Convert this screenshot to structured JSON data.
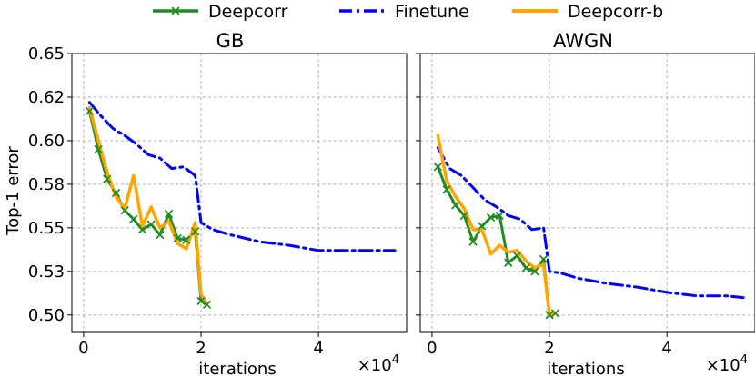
{
  "chart_data": {
    "type": "line",
    "legend": {
      "placement": "top-center",
      "entries": [
        {
          "name": "Deepcorr",
          "color": "#228b22",
          "style": "solid-x"
        },
        {
          "name": "Finetune",
          "color": "#0000ff",
          "style": "dashdot"
        },
        {
          "name": "Deepcorr-b",
          "color": "#ffa500",
          "style": "solid"
        }
      ]
    },
    "ylabel": "Top-1 error",
    "xlabel": "iterations",
    "x_multiplier": "×10",
    "x_multiplier_exp": "4",
    "xlim": [
      -0.2,
      5.5
    ],
    "ylim": [
      0.49,
      0.65
    ],
    "xticks": [
      0,
      2,
      4
    ],
    "xtick_labels": [
      "0",
      "2",
      "4"
    ],
    "yticks": [
      0.5,
      0.525,
      0.55,
      0.575,
      0.6,
      0.625,
      0.65
    ],
    "ytick_labels": [
      "0.50",
      "0.53",
      "0.55",
      "0.58",
      "0.60",
      "0.62",
      "0.65"
    ],
    "panels": [
      {
        "title": "GB",
        "series": [
          {
            "name": "Finetune",
            "x": [
              0.1,
              0.3,
              0.5,
              0.7,
              0.9,
              1.1,
              1.3,
              1.5,
              1.7,
              1.9,
              2.0,
              2.2,
              2.5,
              3.0,
              3.5,
              4.0,
              4.5,
              5.0,
              5.3
            ],
            "y": [
              0.622,
              0.614,
              0.607,
              0.603,
              0.598,
              0.592,
              0.59,
              0.584,
              0.585,
              0.58,
              0.553,
              0.549,
              0.546,
              0.542,
              0.54,
              0.537,
              0.537,
              0.537,
              0.537
            ]
          },
          {
            "name": "Deepcorr",
            "x": [
              0.1,
              0.25,
              0.4,
              0.55,
              0.7,
              0.85,
              1.0,
              1.15,
              1.3,
              1.45,
              1.6,
              1.75,
              1.9,
              2.0,
              2.1
            ],
            "y": [
              0.617,
              0.595,
              0.578,
              0.57,
              0.56,
              0.555,
              0.549,
              0.552,
              0.546,
              0.558,
              0.544,
              0.543,
              0.548,
              0.508,
              0.506
            ]
          },
          {
            "name": "Deepcorr-b",
            "x": [
              0.1,
              0.25,
              0.4,
              0.55,
              0.7,
              0.85,
              1.0,
              1.15,
              1.3,
              1.45,
              1.6,
              1.75,
              1.9,
              2.0,
              2.1
            ],
            "y": [
              0.619,
              0.6,
              0.582,
              0.568,
              0.561,
              0.58,
              0.551,
              0.562,
              0.55,
              0.554,
              0.541,
              0.538,
              0.553,
              0.512,
              0.506
            ]
          }
        ]
      },
      {
        "title": "AWGN",
        "series": [
          {
            "name": "Finetune",
            "x": [
              0.1,
              0.3,
              0.5,
              0.7,
              0.9,
              1.1,
              1.3,
              1.5,
              1.7,
              1.9,
              2.0,
              2.2,
              2.5,
              3.0,
              3.5,
              4.0,
              4.5,
              5.0,
              5.3
            ],
            "y": [
              0.596,
              0.584,
              0.58,
              0.573,
              0.566,
              0.562,
              0.557,
              0.555,
              0.549,
              0.55,
              0.525,
              0.524,
              0.521,
              0.518,
              0.516,
              0.513,
              0.511,
              0.511,
              0.51
            ]
          },
          {
            "name": "Deepcorr",
            "x": [
              0.1,
              0.25,
              0.4,
              0.55,
              0.7,
              0.85,
              1.0,
              1.15,
              1.3,
              1.45,
              1.6,
              1.75,
              1.9,
              2.0,
              2.1
            ],
            "y": [
              0.585,
              0.572,
              0.563,
              0.557,
              0.542,
              0.551,
              0.556,
              0.557,
              0.53,
              0.534,
              0.527,
              0.525,
              0.532,
              0.5,
              0.501
            ]
          },
          {
            "name": "Deepcorr-b",
            "x": [
              0.1,
              0.25,
              0.4,
              0.55,
              0.7,
              0.85,
              1.0,
              1.15,
              1.3,
              1.45,
              1.6,
              1.75,
              1.9,
              2.0,
              2.1
            ],
            "y": [
              0.603,
              0.577,
              0.568,
              0.561,
              0.549,
              0.549,
              0.535,
              0.54,
              0.536,
              0.537,
              0.531,
              0.527,
              0.529,
              0.5,
              0.501
            ]
          }
        ]
      }
    ]
  }
}
